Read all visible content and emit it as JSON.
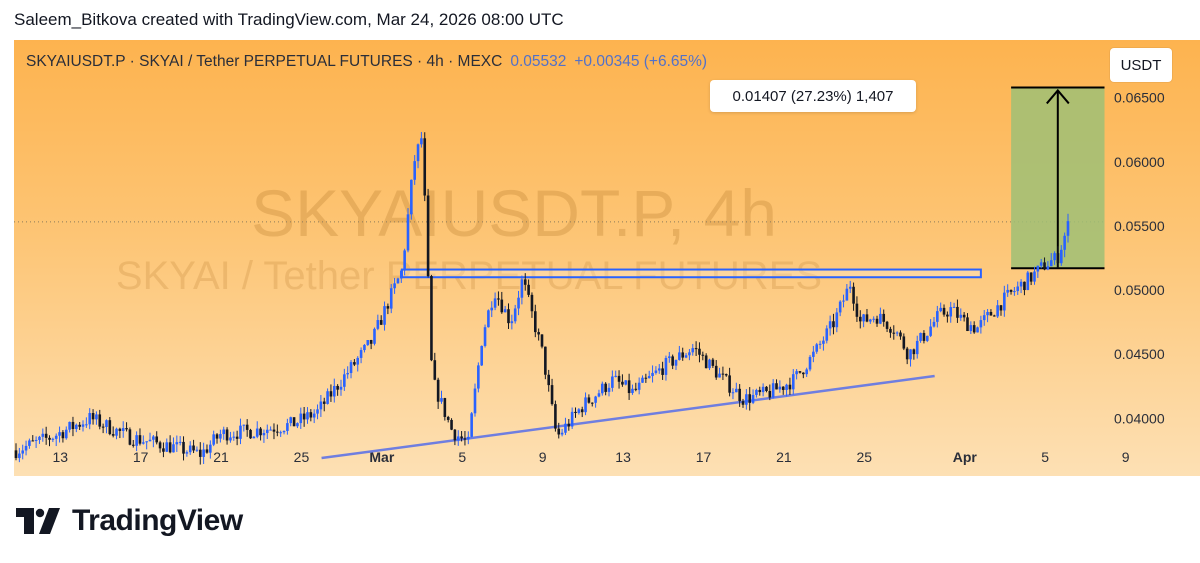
{
  "header": {
    "attribution": "Saleem_Bitkova created with TradingView.com, Mar 24, 2026 08:00 UTC"
  },
  "legend": {
    "symbol_info": "SKYAIUSDT.P · SKYAI / Tether PERPETUAL FUTURES · 4h · MEXC",
    "price": "0.05532",
    "change": "+0.00345 (+6.65%)"
  },
  "currency": "USDT",
  "watermark": {
    "line1": "SKYAIUSDT.P, 4h",
    "line2": "SKYAI / Tether PERPETUAL FUTURES"
  },
  "measure": {
    "label": "0.01407 (27.23%) 1,407",
    "from": 0.0517,
    "to": 0.0658
  },
  "brand": {
    "name": "TradingView"
  },
  "colors": {
    "candle": "#2962ff",
    "wick_dark": "#131722",
    "trendline": "#6f7ee0",
    "zone_fill": "#9fbf76",
    "zone_stroke": "#000000"
  },
  "chart_data": {
    "type": "candlestick",
    "title": "SKYAIUSDT.P · SKYAI / Tether PERPETUAL FUTURES · 4h · MEXC",
    "ylim": [
      0.0355,
      0.0695
    ],
    "y_ticks": [
      "0.04000",
      "0.04500",
      "0.05000",
      "0.05500",
      "0.06000",
      "0.06500"
    ],
    "y_tick_values": [
      0.04,
      0.045,
      0.05,
      0.055,
      0.06,
      0.065
    ],
    "x_ticks": [
      "13",
      "17",
      "21",
      "25",
      "Mar",
      "5",
      "9",
      "13",
      "17",
      "21",
      "25",
      "Apr",
      "5",
      "9"
    ],
    "x_tick_days": [
      13,
      17,
      21,
      25,
      29,
      33,
      37,
      41,
      45,
      49,
      53,
      58,
      62,
      66
    ],
    "x_day_range": [
      10.7,
      69.8
    ],
    "last_price": 0.05532,
    "resistance_zone": [
      0.051,
      0.0516
    ],
    "trendline": [
      {
        "day": 26,
        "price": 0.0369
      },
      {
        "day": 56.5,
        "price": 0.0433
      }
    ],
    "price_path": [
      {
        "day": 10.8,
        "price": 0.0375
      },
      {
        "day": 12.5,
        "price": 0.0385
      },
      {
        "day": 14.5,
        "price": 0.04
      },
      {
        "day": 16.5,
        "price": 0.0385
      },
      {
        "day": 18.5,
        "price": 0.0378
      },
      {
        "day": 20.0,
        "price": 0.0372
      },
      {
        "day": 21.0,
        "price": 0.0388
      },
      {
        "day": 22.5,
        "price": 0.039
      },
      {
        "day": 24.5,
        "price": 0.0395
      },
      {
        "day": 25.8,
        "price": 0.0405
      },
      {
        "day": 27.0,
        "price": 0.043
      },
      {
        "day": 28.5,
        "price": 0.046
      },
      {
        "day": 29.3,
        "price": 0.049
      },
      {
        "day": 30.0,
        "price": 0.0515
      },
      {
        "day": 30.6,
        "price": 0.06
      },
      {
        "day": 31.0,
        "price": 0.062
      },
      {
        "day": 31.5,
        "price": 0.043
      },
      {
        "day": 32.5,
        "price": 0.039
      },
      {
        "day": 33.3,
        "price": 0.038
      },
      {
        "day": 34.0,
        "price": 0.0465
      },
      {
        "day": 34.6,
        "price": 0.05
      },
      {
        "day": 35.4,
        "price": 0.0475
      },
      {
        "day": 36.0,
        "price": 0.0508
      },
      {
        "day": 37.0,
        "price": 0.045
      },
      {
        "day": 37.7,
        "price": 0.0385
      },
      {
        "day": 39.0,
        "price": 0.041
      },
      {
        "day": 40.5,
        "price": 0.043
      },
      {
        "day": 41.5,
        "price": 0.042
      },
      {
        "day": 43.0,
        "price": 0.044
      },
      {
        "day": 44.5,
        "price": 0.0455
      },
      {
        "day": 46.0,
        "price": 0.043
      },
      {
        "day": 47.0,
        "price": 0.0415
      },
      {
        "day": 48.3,
        "price": 0.042
      },
      {
        "day": 49.5,
        "price": 0.043
      },
      {
        "day": 50.5,
        "price": 0.045
      },
      {
        "day": 51.5,
        "price": 0.0475
      },
      {
        "day": 52.3,
        "price": 0.0505
      },
      {
        "day": 52.8,
        "price": 0.0475
      },
      {
        "day": 53.6,
        "price": 0.048
      },
      {
        "day": 54.5,
        "price": 0.047
      },
      {
        "day": 55.2,
        "price": 0.045
      },
      {
        "day": 56.0,
        "price": 0.0465
      },
      {
        "day": 56.7,
        "price": 0.048
      },
      {
        "day": 57.3,
        "price": 0.0485
      },
      {
        "day": 58.0,
        "price": 0.0475
      },
      {
        "day": 58.6,
        "price": 0.047
      },
      {
        "day": 59.2,
        "price": 0.048
      },
      {
        "day": 59.8,
        "price": 0.049
      },
      {
        "day": 60.5,
        "price": 0.05
      },
      {
        "day": 61.3,
        "price": 0.051
      },
      {
        "day": 62.0,
        "price": 0.052
      },
      {
        "day": 62.6,
        "price": 0.0525
      },
      {
        "day": 63.2,
        "price": 0.0553
      }
    ]
  }
}
